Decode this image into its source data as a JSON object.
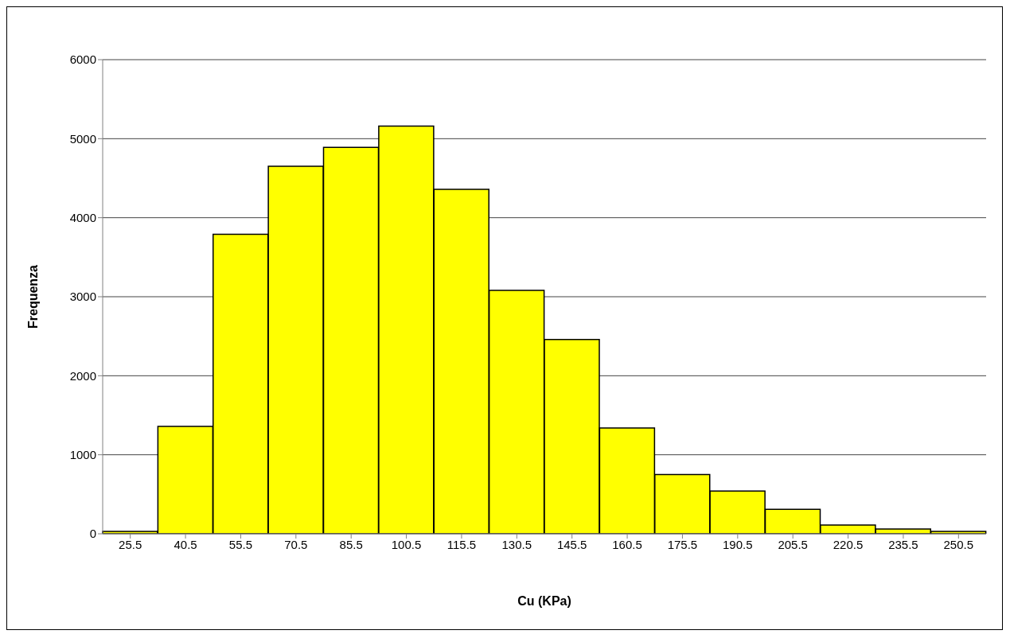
{
  "chart_data": {
    "type": "bar",
    "xlabel": "Cu (KPa)",
    "ylabel": "Frequenza",
    "categories": [
      "25.5",
      "40.5",
      "55.5",
      "70.5",
      "85.5",
      "100.5",
      "115.5",
      "130.5",
      "145.5",
      "160.5",
      "175.5",
      "190.5",
      "205.5",
      "220.5",
      "235.5",
      "250.5"
    ],
    "values": [
      30,
      1360,
      3790,
      4650,
      4890,
      5160,
      4360,
      3080,
      2460,
      1340,
      750,
      540,
      310,
      110,
      60,
      30
    ],
    "color": "#ffff00",
    "ylim": [
      0,
      6000
    ],
    "yticks": [
      0,
      1000,
      2000,
      3000,
      4000,
      5000,
      6000
    ],
    "grid": "y",
    "legend": false
  }
}
